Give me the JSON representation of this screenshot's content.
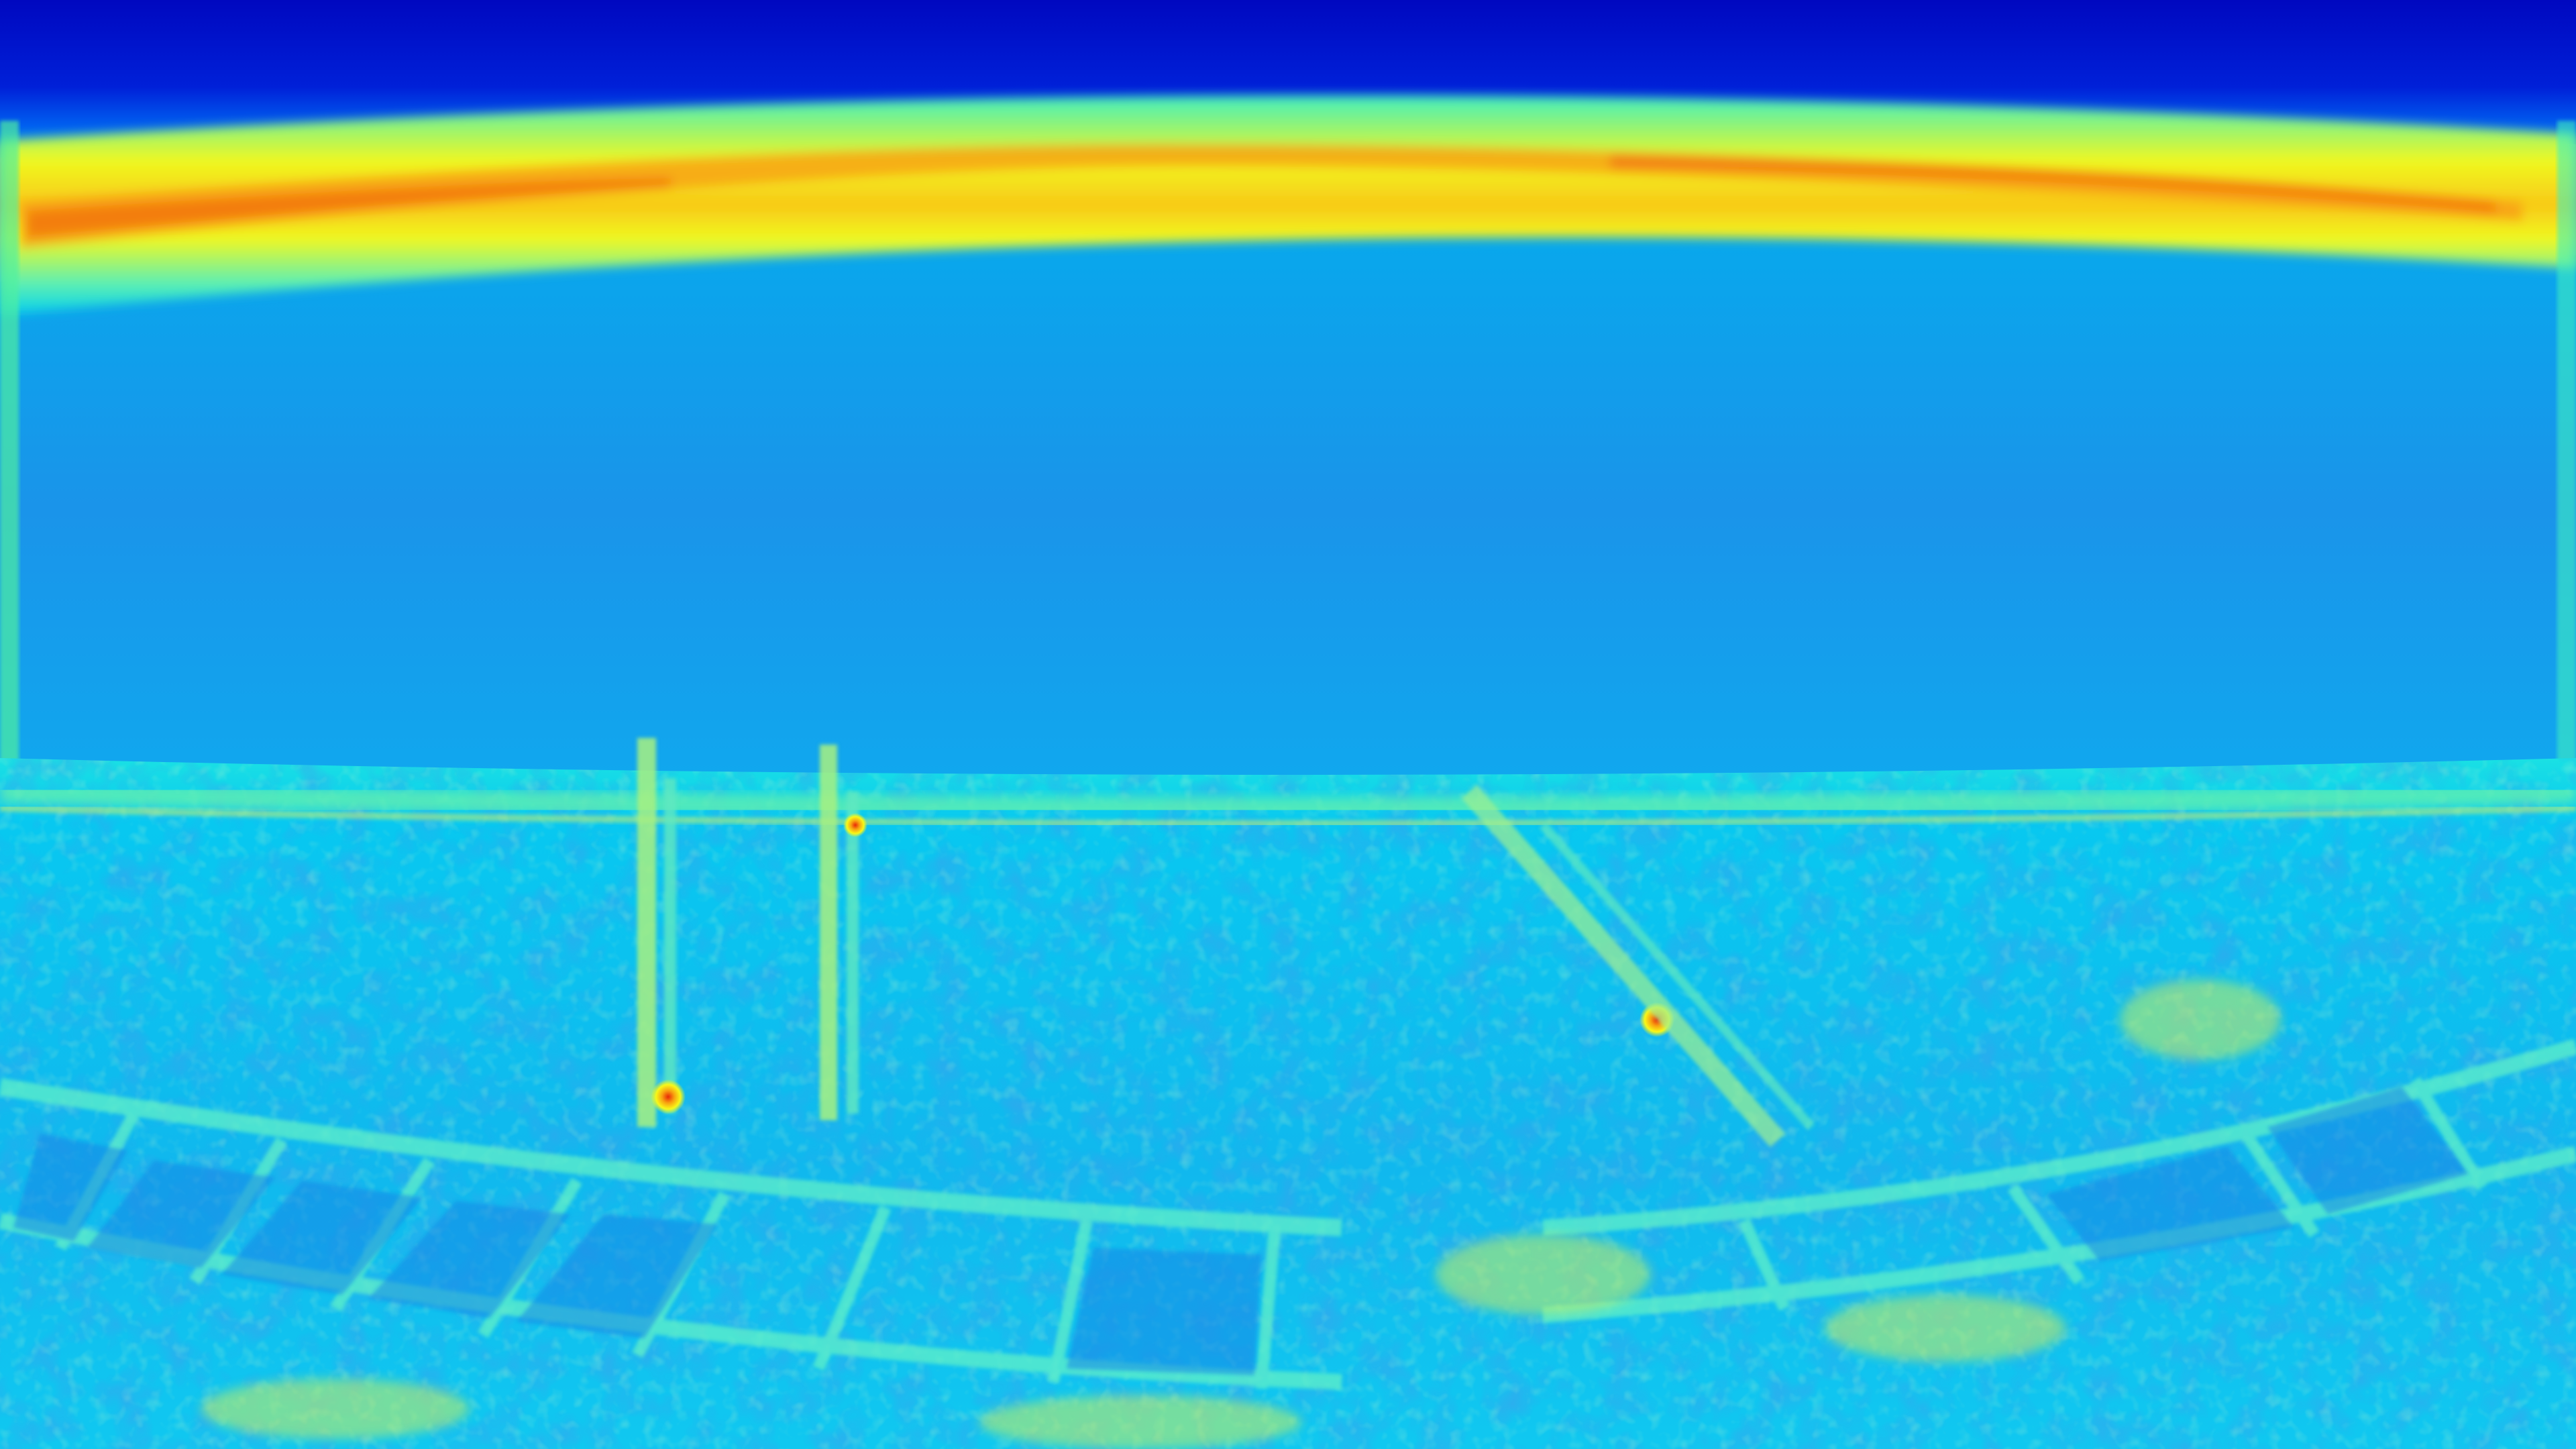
{
  "image": {
    "kind": "false-color heatmap / saliency-style rendering of a wide fisheye rooftop view",
    "colormap": "jet",
    "palette": {
      "deep_blue": "#0010c8",
      "blue": "#0a78e8",
      "sky_blue": "#1d98ec",
      "cyan": "#00d8f4",
      "aqua": "#30f0d8",
      "green": "#90f090",
      "yellow": "#f8f818",
      "orange": "#f89810",
      "red": "#e82808"
    },
    "regions": [
      {
        "name": "top-band",
        "level": "lowest",
        "color": "deep_blue"
      },
      {
        "name": "horizon-arc",
        "level": "highest",
        "color": "yellow-to-orange"
      },
      {
        "name": "sky-field",
        "level": "low",
        "color": "sky_blue"
      },
      {
        "name": "ground-field",
        "level": "medium",
        "color": "cyan-textured"
      }
    ]
  }
}
